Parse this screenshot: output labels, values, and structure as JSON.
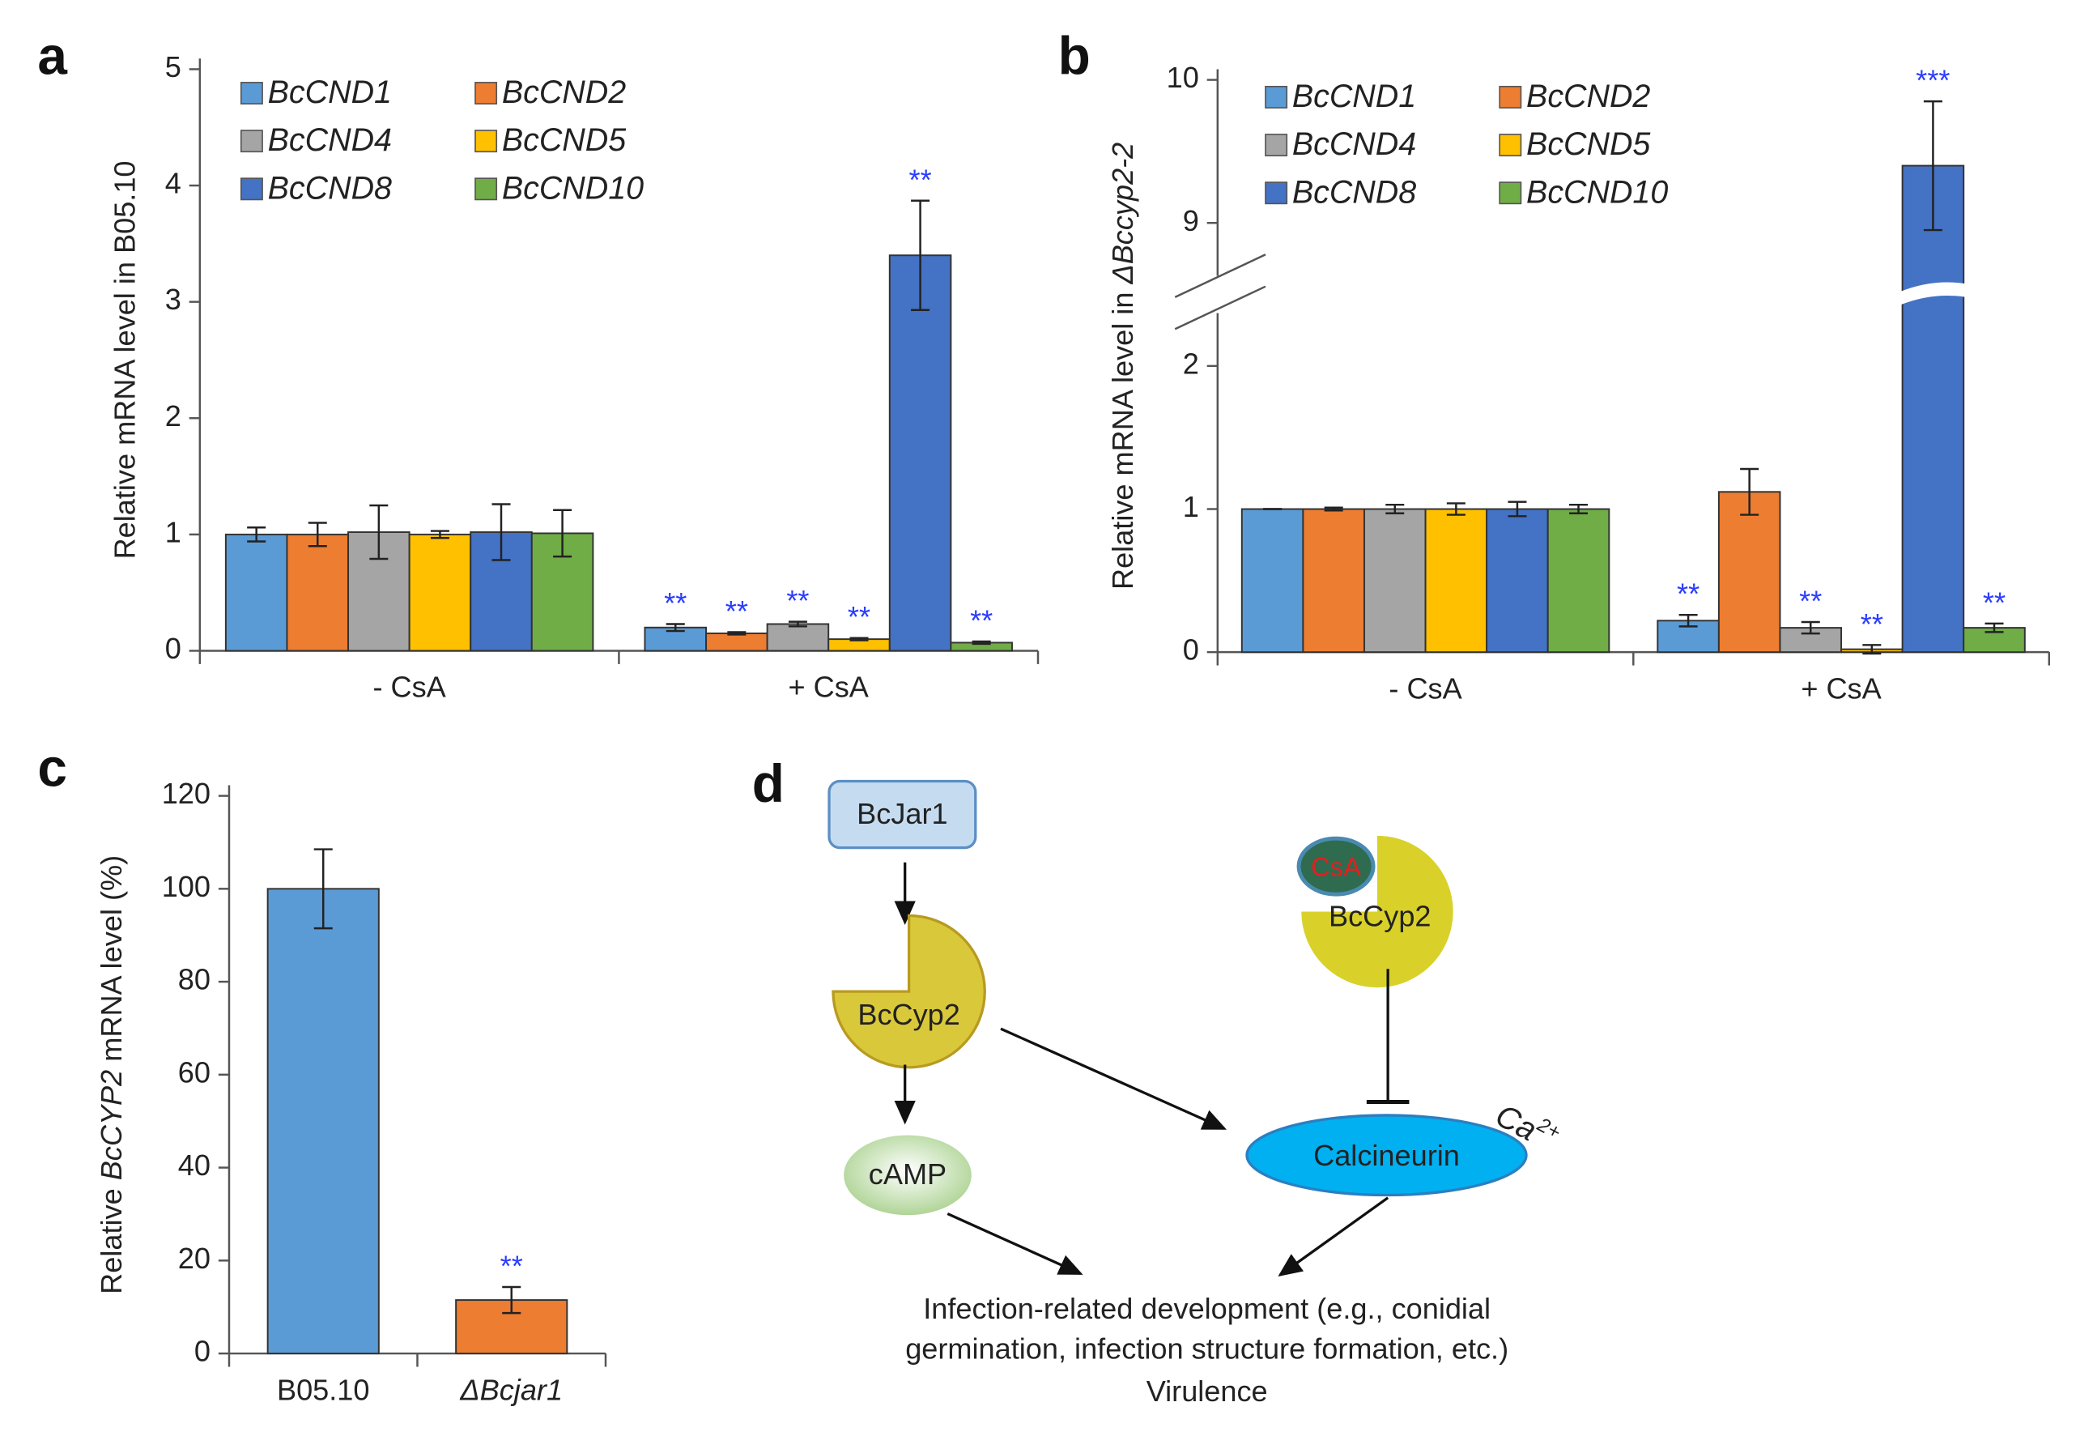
{
  "chart_data": [
    {
      "type": "bar",
      "label": "a",
      "ylabel": [
        "Relative mRNA level in B05.10"
      ],
      "ylabel_italic": [
        false
      ],
      "categories": [
        "- CsA",
        "+ CsA"
      ],
      "series": [
        {
          "name": "BcCND1",
          "color": "#5b9bd5",
          "values": [
            1,
            0.2
          ],
          "errors": [
            0.06,
            0.03
          ],
          "significance": [
            null,
            "**"
          ]
        },
        {
          "name": "BcCND2",
          "color": "#ed7d31",
          "values": [
            1,
            0.15
          ],
          "errors": [
            0.1,
            0.01
          ],
          "significance": [
            null,
            "**"
          ]
        },
        {
          "name": "BcCND4",
          "color": "#a5a5a5",
          "values": [
            1.02,
            0.23
          ],
          "errors": [
            0.23,
            0.02
          ],
          "significance": [
            null,
            "**"
          ]
        },
        {
          "name": "BcCND5",
          "color": "#ffc000",
          "values": [
            1,
            0.1
          ],
          "errors": [
            0.03,
            0.01
          ],
          "significance": [
            null,
            "**"
          ]
        },
        {
          "name": "BcCND8",
          "color": "#4472c4",
          "values": [
            1.02,
            3.4
          ],
          "errors": [
            0.24,
            0.47
          ],
          "significance": [
            null,
            "**"
          ]
        },
        {
          "name": "BcCND10",
          "color": "#70ad47",
          "values": [
            1.01,
            0.07
          ],
          "errors": [
            0.2,
            0.01
          ],
          "significance": [
            null,
            "**"
          ]
        }
      ],
      "ylim": [
        0,
        5
      ],
      "yticks": [
        0,
        1,
        2,
        3,
        4,
        5
      ],
      "legend": "top-left"
    },
    {
      "type": "bar",
      "label": "b",
      "ylabel": [
        "Relative mRNA level in ",
        "ΔBccyp2-2"
      ],
      "ylabel_italic": [
        false,
        true
      ],
      "categories": [
        "- CsA",
        "+ CsA"
      ],
      "series": [
        {
          "name": "BcCND1",
          "color": "#5b9bd5",
          "values": [
            1,
            0.22
          ],
          "errors": [
            0,
            0.04
          ],
          "significance": [
            null,
            "**"
          ]
        },
        {
          "name": "BcCND2",
          "color": "#ed7d31",
          "values": [
            1,
            1.12
          ],
          "errors": [
            0.01,
            0.16
          ],
          "significance": [
            null,
            null
          ]
        },
        {
          "name": "BcCND4",
          "color": "#a5a5a5",
          "values": [
            1,
            0.17
          ],
          "errors": [
            0.03,
            0.04
          ],
          "significance": [
            null,
            "**"
          ]
        },
        {
          "name": "BcCND5",
          "color": "#ffc000",
          "values": [
            1,
            0.02
          ],
          "errors": [
            0.04,
            0.03
          ],
          "significance": [
            null,
            "**"
          ]
        },
        {
          "name": "BcCND8",
          "color": "#4472c4",
          "values": [
            1,
            9.4
          ],
          "errors": [
            0.05,
            0.45
          ],
          "significance": [
            null,
            "***"
          ]
        },
        {
          "name": "BcCND10",
          "color": "#70ad47",
          "values": [
            1,
            0.17
          ],
          "errors": [
            0.03,
            0.03
          ],
          "significance": [
            null,
            "**"
          ]
        }
      ],
      "ylim": [
        0,
        10
      ],
      "yticks": [
        0,
        1,
        2,
        9,
        10
      ],
      "ybreak": [
        2.5,
        8.5
      ],
      "legend": "top-left"
    },
    {
      "type": "bar",
      "label": "c",
      "ylabel": [
        "Relative ",
        "BcCYP2",
        " mRNA level (%)"
      ],
      "ylabel_italic": [
        false,
        true,
        false
      ],
      "categories": [
        "B05.10",
        "ΔBcjar1"
      ],
      "category_style": [
        "normal",
        "italic"
      ],
      "values": [
        100,
        11.5
      ],
      "errors": [
        8.5,
        2.8
      ],
      "colors": [
        "#5b9bd5",
        "#ed7d31"
      ],
      "significance": [
        null,
        "**"
      ],
      "ylim": [
        0,
        120
      ],
      "yticks": [
        0,
        20,
        40,
        60,
        80,
        100,
        120
      ]
    }
  ],
  "diagram": {
    "label": "d",
    "nodes": [
      {
        "label": "BcJar1"
      },
      {
        "label": "BcCyp2"
      },
      {
        "label": "cAMP"
      },
      {
        "label": "Calcineurin"
      },
      {
        "label": "CsA"
      },
      {
        "label": "BcCyp2"
      }
    ],
    "ion": {
      "base": "Ca",
      "charge": "2+"
    },
    "outcome": [
      "Infection-related development (e.g., conidial",
      "germination, infection structure formation, etc.)",
      "Virulence"
    ]
  }
}
